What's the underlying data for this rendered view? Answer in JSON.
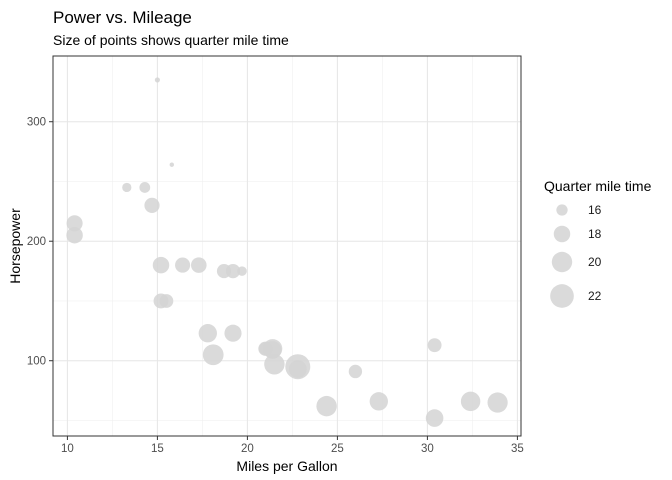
{
  "chart_data": {
    "type": "scatter",
    "title": "Power vs. Mileage",
    "subtitle": "Size of points shows quarter mile time",
    "xlabel": "Miles per Gallon",
    "ylabel": "Horsepower",
    "xlim": [
      9.2,
      35.2
    ],
    "ylim": [
      37,
      355
    ],
    "x_ticks": [
      10,
      15,
      20,
      25,
      30,
      35
    ],
    "y_ticks": [
      100,
      200,
      300
    ],
    "grid": true,
    "point_color": "#d3d3d3",
    "size_variable": "Quarter mile time",
    "size_range": [
      14.5,
      22.9
    ],
    "legend": {
      "title": "Quarter mile time",
      "position": "right",
      "entries": [
        {
          "label": "16",
          "value": 16
        },
        {
          "label": "18",
          "value": 18
        },
        {
          "label": "20",
          "value": 20
        },
        {
          "label": "22",
          "value": 22
        }
      ]
    },
    "points": [
      {
        "x": 21.0,
        "y": 110,
        "size": 16.46
      },
      {
        "x": 21.0,
        "y": 110,
        "size": 17.02
      },
      {
        "x": 22.8,
        "y": 93,
        "size": 18.61
      },
      {
        "x": 21.4,
        "y": 110,
        "size": 19.44
      },
      {
        "x": 18.7,
        "y": 175,
        "size": 17.02
      },
      {
        "x": 18.1,
        "y": 105,
        "size": 20.22
      },
      {
        "x": 14.3,
        "y": 245,
        "size": 15.84
      },
      {
        "x": 24.4,
        "y": 62,
        "size": 20.0
      },
      {
        "x": 22.8,
        "y": 95,
        "size": 22.9
      },
      {
        "x": 19.2,
        "y": 123,
        "size": 18.3
      },
      {
        "x": 17.8,
        "y": 123,
        "size": 18.9
      },
      {
        "x": 16.4,
        "y": 180,
        "size": 17.4
      },
      {
        "x": 17.3,
        "y": 180,
        "size": 17.6
      },
      {
        "x": 15.2,
        "y": 180,
        "size": 18.0
      },
      {
        "x": 10.4,
        "y": 205,
        "size": 17.98
      },
      {
        "x": 10.4,
        "y": 215,
        "size": 17.82
      },
      {
        "x": 14.7,
        "y": 230,
        "size": 17.42
      },
      {
        "x": 32.4,
        "y": 66,
        "size": 19.47
      },
      {
        "x": 30.4,
        "y": 52,
        "size": 18.52
      },
      {
        "x": 33.9,
        "y": 65,
        "size": 19.9
      },
      {
        "x": 21.5,
        "y": 97,
        "size": 20.01
      },
      {
        "x": 15.5,
        "y": 150,
        "size": 16.87
      },
      {
        "x": 15.2,
        "y": 150,
        "size": 17.3
      },
      {
        "x": 13.3,
        "y": 245,
        "size": 15.41
      },
      {
        "x": 19.2,
        "y": 175,
        "size": 17.05
      },
      {
        "x": 27.3,
        "y": 66,
        "size": 18.9
      },
      {
        "x": 26.0,
        "y": 91,
        "size": 16.7
      },
      {
        "x": 30.4,
        "y": 113,
        "size": 16.9
      },
      {
        "x": 15.8,
        "y": 264,
        "size": 14.5
      },
      {
        "x": 19.7,
        "y": 175,
        "size": 15.5
      },
      {
        "x": 15.0,
        "y": 335,
        "size": 14.6
      },
      {
        "x": 21.4,
        "y": 109,
        "size": 18.6
      }
    ]
  }
}
